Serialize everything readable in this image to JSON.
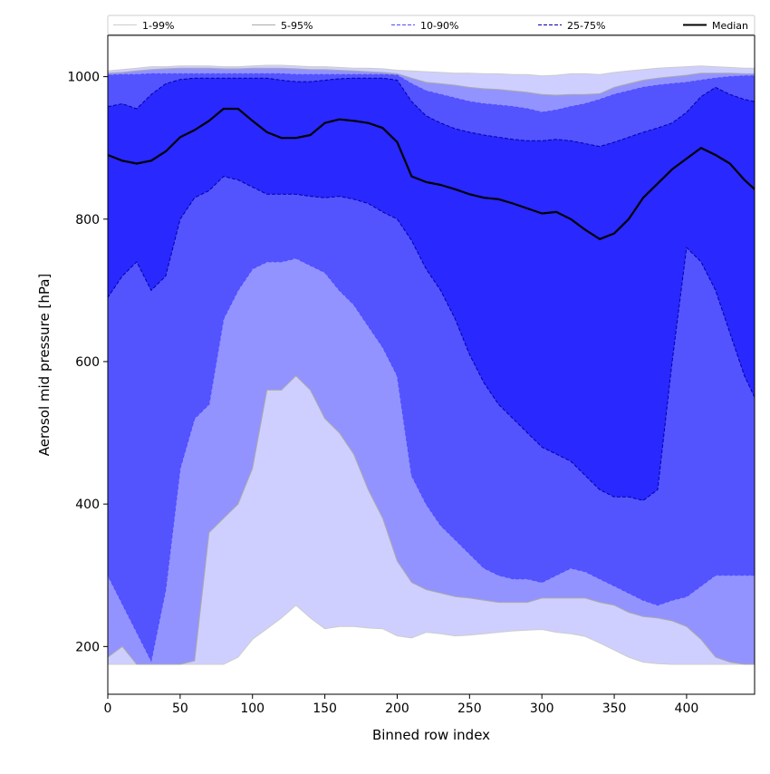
{
  "chart_data": {
    "type": "area",
    "xlabel": "Binned row index",
    "ylabel": "Aerosol mid pressure [hPa]",
    "xlim": [
      0,
      447
    ],
    "ylim": [
      1058,
      133
    ],
    "y_inverted": true,
    "xticks": [
      0,
      50,
      100,
      150,
      200,
      250,
      300,
      350,
      400
    ],
    "yticks": [
      200,
      400,
      600,
      800,
      1000
    ],
    "legend_position": "top (above plot, single row)",
    "grid": false,
    "x": [
      0,
      10,
      20,
      30,
      40,
      50,
      60,
      70,
      80,
      90,
      100,
      110,
      120,
      130,
      140,
      150,
      160,
      170,
      180,
      190,
      200,
      210,
      220,
      230,
      240,
      250,
      260,
      270,
      280,
      290,
      300,
      310,
      320,
      330,
      340,
      350,
      360,
      370,
      380,
      390,
      400,
      410,
      420,
      430,
      440,
      447
    ],
    "bands": [
      {
        "name": "1-99%",
        "color": "#cfcfff",
        "line_color": "#cccccc",
        "line_style": "solid",
        "upper": [
          1008,
          1010,
          1012,
          1014,
          1014,
          1015,
          1015,
          1015,
          1014,
          1014,
          1015,
          1016,
          1016,
          1015,
          1014,
          1014,
          1013,
          1012,
          1012,
          1011,
          1009,
          1008,
          1007,
          1006,
          1005,
          1005,
          1004,
          1004,
          1003,
          1003,
          1001,
          1002,
          1004,
          1004,
          1003,
          1006,
          1008,
          1010,
          1012,
          1013,
          1014,
          1015,
          1014,
          1013,
          1012,
          1012
        ],
        "lower": [
          175,
          175,
          175,
          175,
          175,
          175,
          175,
          175,
          175,
          185,
          210,
          225,
          240,
          258,
          240,
          225,
          228,
          228,
          226,
          225,
          215,
          212,
          220,
          218,
          215,
          216,
          218,
          220,
          222,
          223,
          224,
          220,
          218,
          214,
          205,
          195,
          185,
          178,
          176,
          175,
          175,
          175,
          175,
          175,
          175,
          175
        ]
      },
      {
        "name": "5-95%",
        "color": "#9393ff",
        "line_color": "#aaaaaa",
        "line_style": "solid",
        "upper": [
          1005,
          1006,
          1008,
          1010,
          1011,
          1012,
          1012,
          1012,
          1011,
          1011,
          1012,
          1012,
          1012,
          1011,
          1010,
          1010,
          1009,
          1008,
          1007,
          1006,
          1004,
          998,
          992,
          990,
          988,
          985,
          983,
          982,
          980,
          978,
          975,
          974,
          975,
          975,
          976,
          985,
          990,
          995,
          998,
          1000,
          1002,
          1005,
          1005,
          1005,
          1004,
          1004
        ],
        "lower": [
          185,
          200,
          175,
          175,
          175,
          175,
          180,
          360,
          380,
          400,
          450,
          560,
          560,
          580,
          560,
          520,
          500,
          470,
          420,
          380,
          320,
          290,
          280,
          275,
          270,
          268,
          265,
          262,
          262,
          262,
          268,
          268,
          268,
          268,
          262,
          258,
          248,
          242,
          240,
          236,
          228,
          210,
          185,
          178,
          175,
          175
        ]
      },
      {
        "name": "10-90%",
        "color": "#5454ff",
        "line_color": "#4d4dff",
        "line_style": "dashed",
        "upper": [
          1002,
          1003,
          1003,
          1004,
          1004,
          1004,
          1004,
          1004,
          1004,
          1004,
          1004,
          1004,
          1004,
          1003,
          1003,
          1003,
          1003,
          1003,
          1003,
          1003,
          1002,
          990,
          980,
          975,
          970,
          965,
          962,
          960,
          958,
          955,
          950,
          953,
          958,
          962,
          968,
          975,
          980,
          985,
          988,
          990,
          992,
          995,
          998,
          1000,
          1001,
          1001
        ],
        "lower": [
          300,
          260,
          220,
          180,
          280,
          450,
          520,
          540,
          660,
          700,
          730,
          740,
          740,
          745,
          735,
          725,
          700,
          680,
          650,
          620,
          580,
          440,
          400,
          370,
          350,
          330,
          310,
          300,
          295,
          295,
          290,
          300,
          310,
          305,
          295,
          285,
          275,
          265,
          258,
          265,
          270,
          285,
          300,
          300,
          300,
          300
        ]
      },
      {
        "name": "25-75%",
        "color": "#2828ff",
        "line_color": "#0000aa",
        "line_style": "dashed",
        "upper": [
          958,
          962,
          955,
          975,
          990,
          996,
          998,
          998,
          998,
          998,
          998,
          998,
          995,
          993,
          993,
          995,
          997,
          998,
          998,
          998,
          995,
          965,
          945,
          935,
          927,
          922,
          918,
          915,
          912,
          910,
          910,
          912,
          910,
          906,
          902,
          908,
          915,
          922,
          928,
          935,
          950,
          972,
          985,
          975,
          968,
          965
        ],
        "lower": [
          690,
          720,
          740,
          700,
          720,
          800,
          830,
          840,
          860,
          855,
          845,
          835,
          835,
          835,
          832,
          830,
          832,
          828,
          822,
          810,
          800,
          770,
          730,
          700,
          660,
          610,
          570,
          540,
          520,
          500,
          480,
          470,
          460,
          440,
          420,
          410,
          410,
          405,
          420,
          600,
          760,
          740,
          700,
          640,
          580,
          550
        ]
      }
    ],
    "series": [
      {
        "name": "Median",
        "color": "#000000",
        "values": [
          890,
          882,
          878,
          882,
          895,
          915,
          925,
          938,
          955,
          955,
          938,
          922,
          914,
          914,
          918,
          935,
          940,
          938,
          935,
          928,
          908,
          860,
          852,
          848,
          842,
          835,
          830,
          828,
          822,
          815,
          808,
          810,
          800,
          785,
          772,
          780,
          800,
          830,
          850,
          870,
          885,
          900,
          890,
          878,
          855,
          842
        ]
      }
    ],
    "legend": [
      {
        "label": "1-99%",
        "style": "solid",
        "color": "#cccccc"
      },
      {
        "label": "5-95%",
        "style": "solid",
        "color": "#aaaaaa"
      },
      {
        "label": "10-90%",
        "style": "dashed",
        "color": "#4d4dff"
      },
      {
        "label": "25-75%",
        "style": "dashed",
        "color": "#0000aa"
      },
      {
        "label": "Median",
        "style": "solid",
        "color": "#000000"
      }
    ]
  }
}
